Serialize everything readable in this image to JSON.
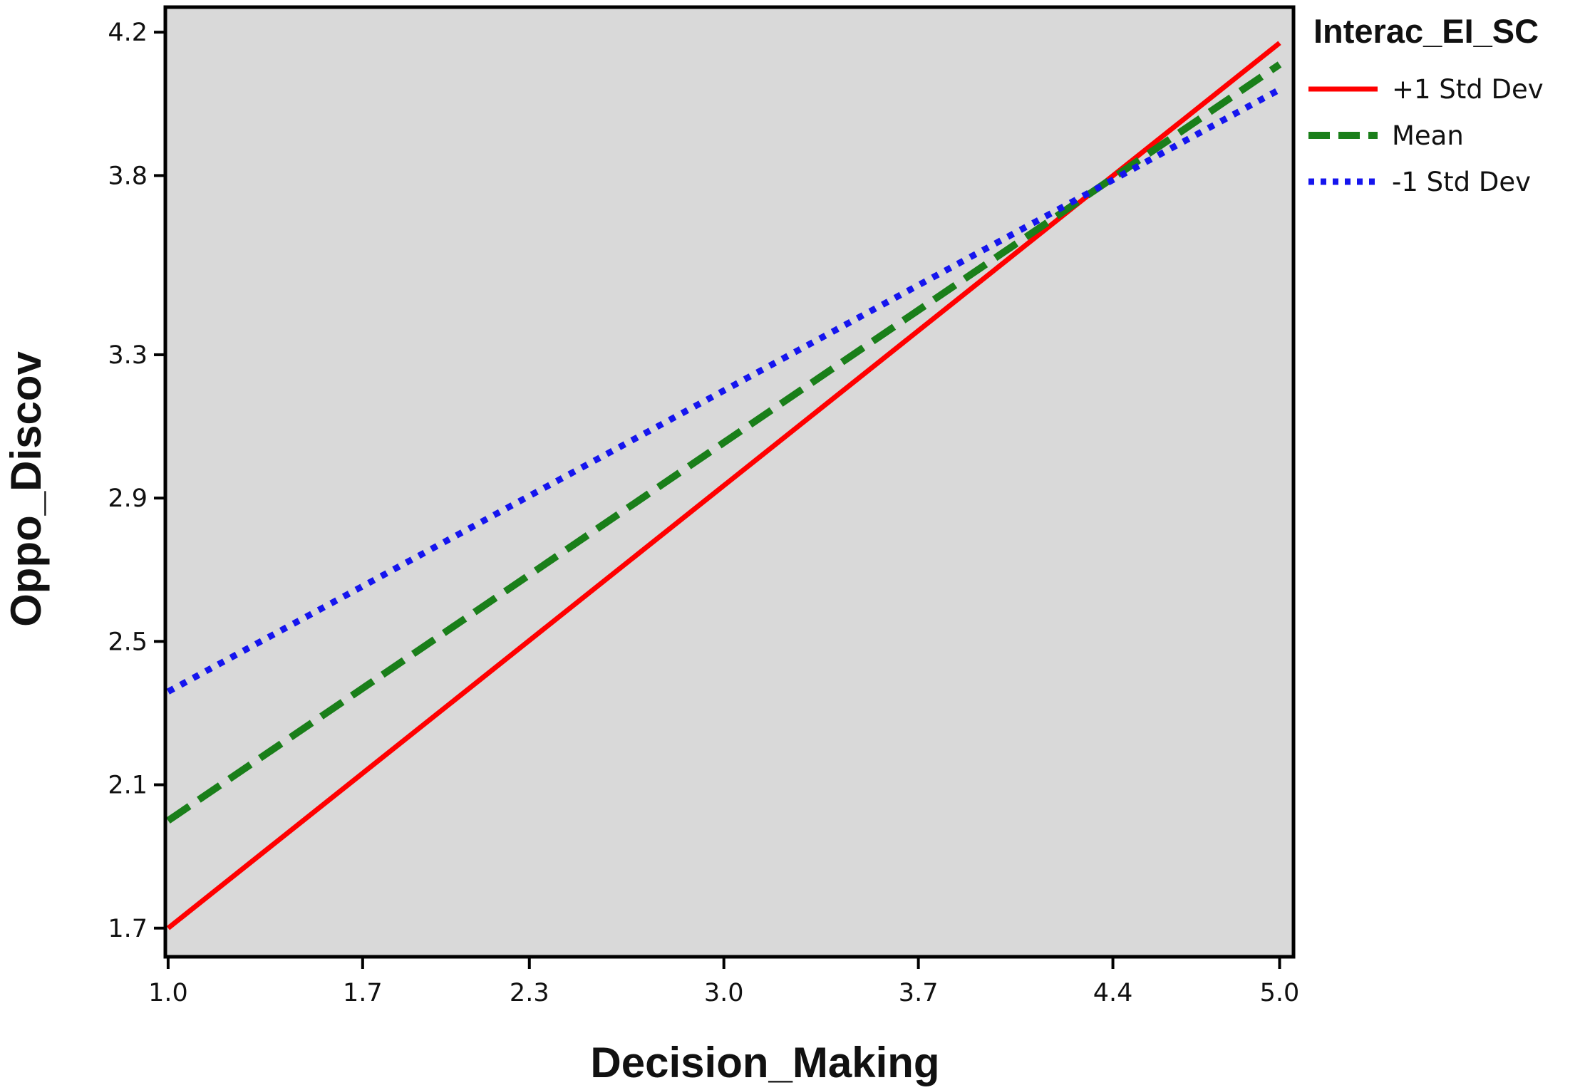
{
  "chart_data": {
    "type": "line",
    "xlabel": "Decision_Making",
    "ylabel": "Oppo_Discov",
    "x_ticks": [
      "1.0",
      "1.7",
      "2.3",
      "3.0",
      "3.7",
      "4.4",
      "5.0"
    ],
    "y_ticks": [
      "1.7",
      "2.1",
      "2.5",
      "2.9",
      "3.3",
      "3.8",
      "4.2"
    ],
    "xlim": [
      0.99,
      5.05
    ],
    "ylim": [
      1.62,
      4.27
    ],
    "grid": false,
    "background_color": "#d9d9d9",
    "legend": {
      "title": "Interac_EI_SC",
      "placement": "right-outside-top"
    },
    "series": [
      {
        "name": "+1 Std Dev",
        "x": [
          1.0,
          5.0
        ],
        "y": [
          1.7,
          4.17
        ],
        "color": "#ff0000",
        "style": "solid"
      },
      {
        "name": "Mean",
        "x": [
          1.0,
          5.0
        ],
        "y": [
          2.0,
          4.11
        ],
        "color": "#1a7f1a",
        "style": "dashed"
      },
      {
        "name": "-1 Std Dev",
        "x": [
          1.0,
          5.0
        ],
        "y": [
          2.36,
          4.04
        ],
        "color": "#1515ee",
        "style": "dotted"
      }
    ]
  }
}
